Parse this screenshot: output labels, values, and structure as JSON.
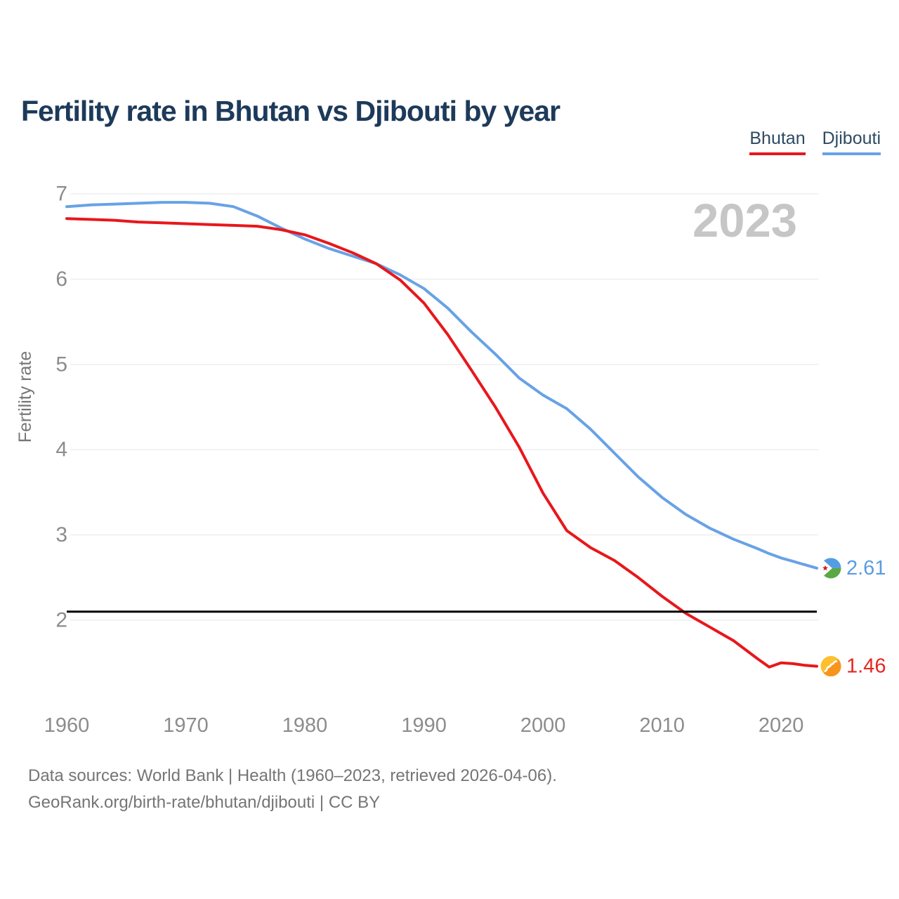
{
  "title": "Fertility rate in Bhutan vs Djibouti by year",
  "watermark_year": "2023",
  "legend": {
    "items": [
      {
        "label": "Bhutan",
        "color": "#e8171b"
      },
      {
        "label": "Djibouti",
        "color": "#68a2e6"
      }
    ]
  },
  "y_axis": {
    "label": "Fertility rate",
    "ticks": [
      "7",
      "6",
      "5",
      "4",
      "3",
      "2"
    ]
  },
  "x_axis": {
    "ticks": [
      "1960",
      "1970",
      "1980",
      "1990",
      "2000",
      "2010",
      "2020"
    ]
  },
  "reference_line": {
    "value": 2.1,
    "color": "#000000"
  },
  "end_labels": [
    {
      "series": "Djibouti",
      "value": "2.61",
      "color": "#5b9ce0",
      "icon": "djibouti-flag-icon"
    },
    {
      "series": "Bhutan",
      "value": "1.46",
      "color": "#e8251f",
      "icon": "bhutan-flag-icon"
    }
  ],
  "footer": {
    "line1": "Data sources: World Bank | Health (1960–2023, retrieved 2026-04-06).",
    "line2": "GeoRank.org/birth-rate/bhutan/djibouti | CC BY"
  },
  "chart_data": {
    "type": "line",
    "title": "Fertility rate in Bhutan vs Djibouti by year",
    "xlabel": "",
    "ylabel": "Fertility rate",
    "xlim": [
      1960,
      2023
    ],
    "ylim": [
      1.2,
      7
    ],
    "y_ticks": [
      7,
      6,
      5,
      4,
      3,
      2
    ],
    "x_ticks": [
      1960,
      1970,
      1980,
      1990,
      2000,
      2010,
      2020
    ],
    "grid": true,
    "legend_position": "top-right",
    "reference_line_y": 2.1,
    "current_year_label": "2023",
    "x": [
      1960,
      1962,
      1964,
      1966,
      1968,
      1970,
      1972,
      1974,
      1976,
      1978,
      1980,
      1982,
      1984,
      1986,
      1988,
      1990,
      1992,
      1994,
      1996,
      1998,
      2000,
      2002,
      2004,
      2006,
      2008,
      2010,
      2012,
      2014,
      2016,
      2018,
      2019,
      2020,
      2021,
      2022,
      2023
    ],
    "series": [
      {
        "name": "Djibouti",
        "color": "#68a2e6",
        "end_value": 2.61,
        "values": [
          6.85,
          6.87,
          6.88,
          6.89,
          6.9,
          6.9,
          6.89,
          6.85,
          6.74,
          6.6,
          6.47,
          6.36,
          6.27,
          6.18,
          6.05,
          5.89,
          5.66,
          5.38,
          5.12,
          4.84,
          4.64,
          4.48,
          4.24,
          3.96,
          3.68,
          3.44,
          3.24,
          3.08,
          2.95,
          2.84,
          2.78,
          2.73,
          2.69,
          2.65,
          2.61
        ]
      },
      {
        "name": "Bhutan",
        "color": "#e8171b",
        "end_value": 1.46,
        "values": [
          6.71,
          6.7,
          6.69,
          6.67,
          6.66,
          6.65,
          6.64,
          6.63,
          6.62,
          6.58,
          6.52,
          6.42,
          6.31,
          6.18,
          5.99,
          5.72,
          5.35,
          4.93,
          4.5,
          4.03,
          3.49,
          3.05,
          2.85,
          2.7,
          2.5,
          2.28,
          2.08,
          1.92,
          1.76,
          1.55,
          1.45,
          1.5,
          1.49,
          1.47,
          1.46
        ]
      }
    ]
  }
}
